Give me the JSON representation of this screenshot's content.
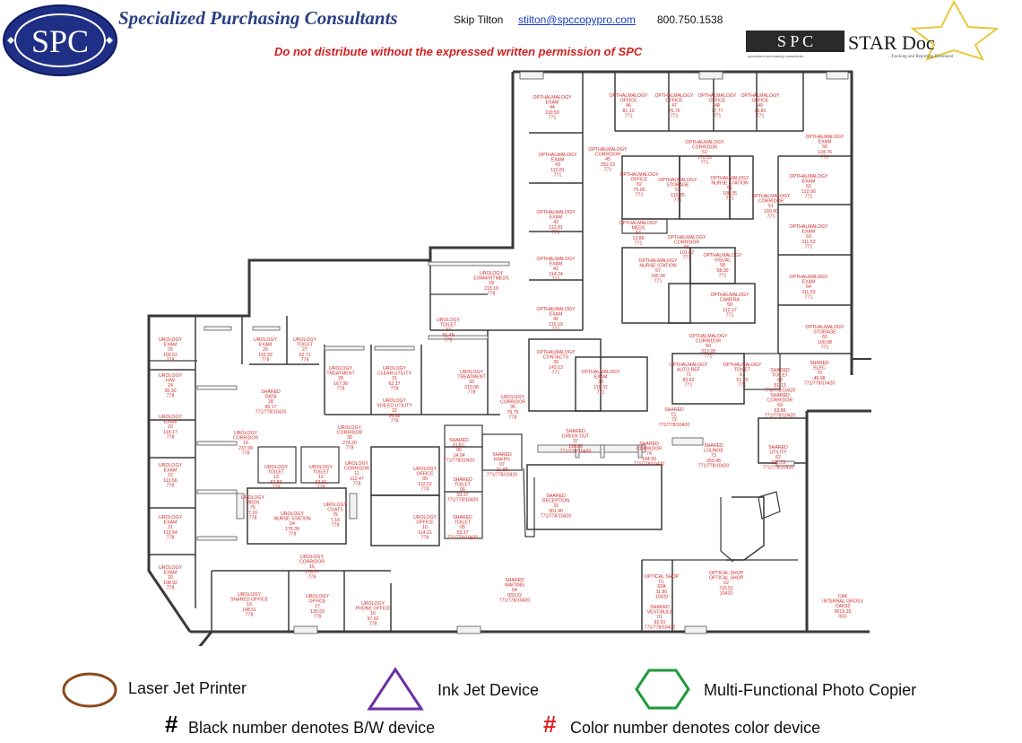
{
  "header": {
    "logo_text": "SPC",
    "company": "Specialized Purchasing Consultants",
    "contact_name": "Skip Tilton",
    "contact_email": "stilton@spccopypro.com",
    "contact_phone": "800.750.1538",
    "warning": "Do not distribute without the expressed written permission of SPC",
    "stardoc_logo": "S P C",
    "stardoc_title": "STAR Doc",
    "stardoc_subtitle": "...Tracking and Reporting Document",
    "stardoc_under": "specialized purchasing consultants"
  },
  "rooms": [
    {
      "lines": [
        "OPTHALMALOGY",
        "EXAM",
        "44",
        "110.50",
        "771"
      ]
    },
    {
      "lines": [
        "OPTHALMALOGY",
        "OFFICE",
        "46",
        "81.13",
        "771"
      ]
    },
    {
      "lines": [
        "OPTHALMALOGY",
        "OFFICE",
        "47",
        "76.76",
        "771"
      ]
    },
    {
      "lines": [
        "OPTHALMALOGY",
        "OFFICE",
        "48",
        "77.77",
        "771"
      ]
    },
    {
      "lines": [
        "OPTHALMALOGY",
        "OFFICE",
        "49",
        "76.81",
        "771"
      ]
    },
    {
      "lines": [
        "OPTHALMALOGY",
        "CORRIDOR",
        "45",
        "252.23",
        "771"
      ]
    },
    {
      "lines": [
        "OPTHALMALOGY",
        "CORRIDOR",
        "51",
        "176.53",
        "771"
      ]
    },
    {
      "lines": [
        "OPTHALMALOGY",
        "EXAM",
        "50",
        "124.76",
        "771"
      ]
    },
    {
      "lines": [
        "OPTHALMALOGY",
        "EXAM",
        "43",
        "112.81",
        "771"
      ]
    },
    {
      "lines": [
        "OPTHALMALOGY",
        "OFFICE",
        "52",
        "75.00",
        "771"
      ]
    },
    {
      "lines": [
        "OPTHALMALOGY",
        "STORAGE",
        "53",
        "110.35",
        "771"
      ]
    },
    {
      "lines": [
        "OPTHALMALOGY",
        "NURSE STATION",
        "55",
        "108.05",
        "771"
      ]
    },
    {
      "lines": [
        "OPTHALMALOGY",
        "CORRIDOR",
        "51",
        "160.90",
        "771"
      ]
    },
    {
      "lines": [
        "OPTHALMALOGY",
        "EXAM",
        "62",
        "110.90",
        "771"
      ]
    },
    {
      "lines": [
        "OPTHALMALOGY",
        "EXAM",
        "42",
        "112.81",
        "771"
      ]
    },
    {
      "lines": [
        "OPTHALMALOGY",
        "MEDS",
        "54",
        "13.86",
        "771"
      ]
    },
    {
      "lines": [
        "OPTHALMALOGY",
        "CORRIDOR",
        "56",
        "101.02",
        "771"
      ]
    },
    {
      "lines": [
        "OPTHALMALOGY",
        "EXAM",
        "63",
        "111.53",
        "771"
      ]
    },
    {
      "lines": [
        "OPTHALMALOGY",
        "EXAM",
        "41",
        "114.24",
        "771"
      ]
    },
    {
      "lines": [
        "OPTHALMALOGY",
        "NURSE STATION",
        "57",
        "145.34",
        "771"
      ]
    },
    {
      "lines": [
        "OPTHALMALOGY",
        "VISUAL",
        "58",
        "58.30",
        "771"
      ]
    },
    {
      "lines": [
        "OPTHALMALOGY",
        "EXAM",
        "64",
        "111.53",
        "771"
      ]
    },
    {
      "lines": [
        "UROLOGY",
        "EXAM/VITMEDS",
        "29",
        "218.19",
        "778"
      ]
    },
    {
      "lines": [
        "OPTHALMALOGY",
        "CAMERA",
        "59",
        "112.17",
        "771"
      ]
    },
    {
      "lines": [
        "OPTHALMALOGY",
        "EXAM",
        "40",
        "115.19",
        "771"
      ]
    },
    {
      "lines": [
        "UROLOGY",
        "TOILET",
        "34",
        "51.49",
        "778"
      ]
    },
    {
      "lines": [
        "OPTHALMALOGY",
        "STORAGE",
        "65",
        "100.98",
        "771"
      ]
    },
    {
      "lines": [
        "OPTHALMALOGY",
        "CORRIDOR",
        "60",
        "213.28",
        "771"
      ]
    },
    {
      "lines": [
        "UROLOGY",
        "EXAM",
        "25",
        "109.52",
        "778"
      ]
    },
    {
      "lines": [
        "UROLOGY",
        "EXAM",
        "26",
        "110.33",
        "778"
      ]
    },
    {
      "lines": [
        "UROLOGY",
        "TOILET",
        "27",
        "52.71",
        "778"
      ]
    },
    {
      "lines": [
        "OPTHALMALOGY",
        "CONTACTS",
        "39",
        "143.13",
        "771"
      ]
    },
    {
      "lines": [
        "UROLOGY",
        "TREATMENT",
        "28",
        "167.90",
        "778"
      ]
    },
    {
      "lines": [
        "UROLOGY",
        "CLEAN UTILITY",
        "31",
        "62.37",
        "778"
      ]
    },
    {
      "lines": [
        "UROLOGY",
        "TREATMENT",
        "33",
        "210.08",
        "778"
      ]
    },
    {
      "lines": [
        "OPTHALMALOGY",
        "EXAM",
        "38",
        "115.31",
        "771"
      ]
    },
    {
      "lines": [
        "OPTHALMALOGY",
        "AUTO REF",
        "71",
        "83.62",
        "771"
      ]
    },
    {
      "lines": [
        "OPTHALMALOGY",
        "TOILET",
        "67",
        "51.20",
        "771"
      ]
    },
    {
      "lines": [
        "SHARED",
        "TOILET",
        "68",
        "51.13",
        "771/778/10420"
      ]
    },
    {
      "lines": [
        "SHARED",
        "ELEC",
        "70",
        "49.98",
        "771/778/10420"
      ]
    },
    {
      "lines": [
        "UROLOGY",
        "H/W",
        "24",
        "36.30",
        "778"
      ]
    },
    {
      "lines": [
        "SHARED",
        "DATA",
        "28",
        "65.17",
        "771/778/10420"
      ]
    },
    {
      "lines": [
        "UROLOGY",
        "SOILED UTILITY",
        "32",
        "56.82",
        "778"
      ]
    },
    {
      "lines": [
        "UROLOGY",
        "CORRIDOR",
        "35",
        "79.75",
        "778"
      ]
    },
    {
      "lines": [
        "SHARED",
        "CORRIDOR",
        "69",
        "63.89",
        "771/778/10420"
      ]
    },
    {
      "lines": [
        "UROLOGY",
        "EXAM",
        "23",
        "114.17",
        "778"
      ]
    },
    {
      "lines": [
        "SHARED",
        "CL",
        "72",
        "",
        "771/778/10420"
      ]
    },
    {
      "lines": [
        "UROLOGY",
        "CORRIDOR",
        "30",
        "274.20",
        "778"
      ]
    },
    {
      "lines": [
        "SHARED",
        "CHECK OUT",
        "37",
        "190.08",
        "771/778/10420"
      ]
    },
    {
      "lines": [
        "UROLOGY",
        "CORRIDOR",
        "19",
        "237.99",
        "778"
      ]
    },
    {
      "lines": [
        "SHARED",
        "ELEC",
        "05",
        "14.04",
        "771/778/10420"
      ]
    },
    {
      "lines": [
        "SHARED",
        "CORRIDOR",
        "74",
        "184.99",
        "771/778/10420"
      ]
    },
    {
      "lines": [
        "SHARED",
        "LOUNGE",
        "73",
        "263.45",
        "771/778/10420"
      ]
    },
    {
      "lines": [
        "SHARED",
        "UTILITY",
        "62",
        "102.73",
        "771/778/10420"
      ]
    },
    {
      "lines": [
        "UROLOGY",
        "CORRIDOR",
        "11",
        "112.47",
        "778"
      ]
    },
    {
      "lines": [
        "SHARED",
        "HSKPG",
        "07",
        "21.88",
        "771/778/10420"
      ]
    },
    {
      "lines": [
        "UROLOGY",
        "EXAM",
        "22",
        "113.56",
        "778"
      ]
    },
    {
      "lines": [
        "UROLOGY",
        "TOILET",
        "13",
        "53.83",
        "778"
      ]
    },
    {
      "lines": [
        "UROLOGY",
        "TOILET",
        "12",
        "53.91",
        "778"
      ]
    },
    {
      "lines": [
        "UROLOGY",
        "OFFICE",
        "09",
        "112.52",
        "778"
      ]
    },
    {
      "lines": [
        "SHARED",
        "TOILET",
        "06",
        "53.37",
        "771/778/10420"
      ]
    },
    {
      "lines": [
        "SHARED",
        "RECEPTION",
        "33",
        "301.40",
        "771/778/10420"
      ]
    },
    {
      "lines": [
        "UROLOGY",
        "MEDS",
        "76",
        "7.16",
        "778"
      ]
    },
    {
      "lines": [
        "UROLOGY",
        "COATS",
        "75",
        "7.16",
        "778"
      ]
    },
    {
      "lines": [
        "UROLOGY",
        "NURSE STATION",
        "54",
        "176.39",
        "778"
      ]
    },
    {
      "lines": [
        "UROLOGY",
        "EXAM",
        "21",
        "113.54",
        "778"
      ]
    },
    {
      "lines": [
        "UROLOGY",
        "OFFICE",
        "10",
        "114.21",
        "778"
      ]
    },
    {
      "lines": [
        "SHARED",
        "TOILET",
        "05",
        "53.37",
        "771/778/10420"
      ]
    },
    {
      "lines": [
        "UROLOGY",
        "CORRIDOR",
        "15",
        "176.77",
        "778"
      ]
    },
    {
      "lines": [
        "UROLOGY",
        "EXAM",
        "20",
        "108.92",
        "778"
      ]
    },
    {
      "lines": [
        "SHARED",
        "WAITING",
        "04",
        "933.22",
        "771/778/10420"
      ]
    },
    {
      "lines": [
        "OPTICAL SHOP",
        "CL",
        "62A",
        "11.80",
        "10420"
      ]
    },
    {
      "lines": [
        "OPTICAL SHOP",
        "OPTICAL SHOP",
        "62",
        "715.51",
        "10420"
      ]
    },
    {
      "lines": [
        "UROLOGY",
        "SHARED OFFICE",
        "18",
        "148.51",
        "778"
      ]
    },
    {
      "lines": [
        "UROLOGY",
        "OFFICE",
        "17",
        "126.93",
        "778"
      ]
    },
    {
      "lines": [
        "UROLOGY",
        "PHONE OFFICE",
        "16",
        "97.62",
        "778"
      ]
    },
    {
      "lines": [
        "SHARED",
        "VESTIBULE",
        "01",
        "92.91",
        "771/778/10420"
      ]
    },
    {
      "lines": [
        "CAK",
        "INTERNAL GROSS",
        "CAK02",
        "9619.35",
        "IGG"
      ]
    }
  ],
  "legend": {
    "laser": "Laser Jet Printer",
    "inkjet": "Ink Jet Device",
    "mfp": "Multi-Functional Photo Copier",
    "bw_symbol": "#",
    "bw_text": "Black number denotes B/W device",
    "color_symbol": "#",
    "color_text": "Color number denotes color device",
    "colors": {
      "laser": "#8b4a1c",
      "inkjet": "#6b2fa3",
      "mfp": "#1f9a3c",
      "color_number": "#e01e1e"
    }
  }
}
